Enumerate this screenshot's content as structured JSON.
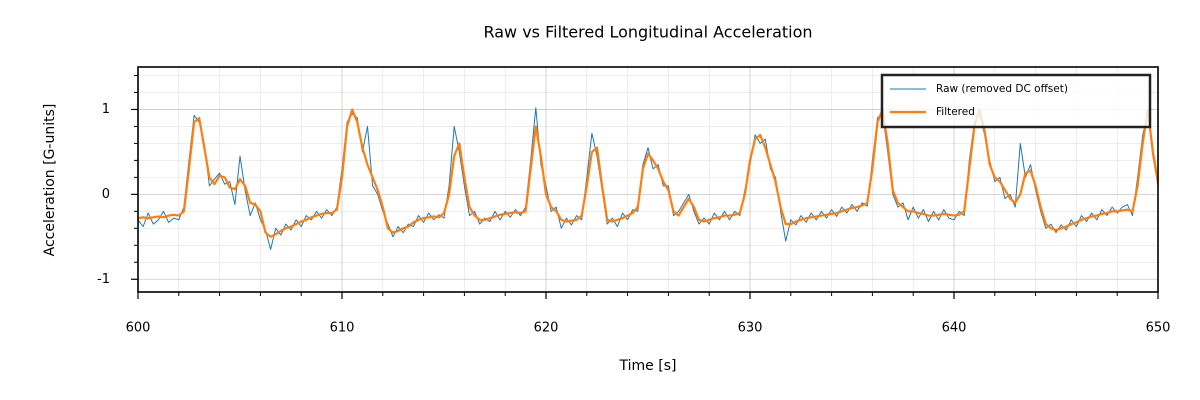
{
  "chart_data": {
    "type": "line",
    "title": "Raw vs Filtered Longitudinal Acceleration",
    "xlabel": "Time [s]",
    "ylabel": "Acceleration [G-units]",
    "xlim": [
      600,
      650
    ],
    "ylim": [
      -1.15,
      1.5
    ],
    "xticks": [
      600,
      610,
      620,
      630,
      640,
      650
    ],
    "yticks": [
      -1,
      0,
      1
    ],
    "xminorticks": [
      602,
      604,
      606,
      608,
      612,
      614,
      616,
      618,
      622,
      624,
      626,
      628,
      632,
      634,
      636,
      638,
      642,
      644,
      646,
      648
    ],
    "yminorticks": [
      -0.8,
      -0.6,
      -0.4,
      -0.2,
      0.2,
      0.4,
      0.6,
      0.8,
      1.2,
      1.4
    ],
    "grid": true,
    "legend": "upper right",
    "x": [
      600,
      600.25,
      600.5,
      600.75,
      601,
      601.25,
      601.5,
      601.75,
      602,
      602.25,
      602.5,
      602.75,
      603,
      603.25,
      603.5,
      603.75,
      604,
      604.25,
      604.5,
      604.75,
      605,
      605.25,
      605.5,
      605.75,
      606,
      606.25,
      606.5,
      606.75,
      607,
      607.25,
      607.5,
      607.75,
      608,
      608.25,
      608.5,
      608.75,
      609,
      609.25,
      609.5,
      609.75,
      610,
      610.25,
      610.5,
      610.75,
      611,
      611.25,
      611.5,
      611.75,
      612,
      612.25,
      612.5,
      612.75,
      613,
      613.25,
      613.5,
      613.75,
      614,
      614.25,
      614.5,
      614.75,
      615,
      615.25,
      615.5,
      615.75,
      616,
      616.25,
      616.5,
      616.75,
      617,
      617.25,
      617.5,
      617.75,
      618,
      618.25,
      618.5,
      618.75,
      619,
      619.25,
      619.5,
      619.75,
      620,
      620.25,
      620.5,
      620.75,
      621,
      621.25,
      621.5,
      621.75,
      622,
      622.25,
      622.5,
      622.75,
      623,
      623.25,
      623.5,
      623.75,
      624,
      624.25,
      624.5,
      624.75,
      625,
      625.25,
      625.5,
      625.75,
      626,
      626.25,
      626.5,
      626.75,
      627,
      627.25,
      627.5,
      627.75,
      628,
      628.25,
      628.5,
      628.75,
      629,
      629.25,
      629.5,
      629.75,
      630,
      630.25,
      630.5,
      630.75,
      631,
      631.25,
      631.5,
      631.75,
      632,
      632.25,
      632.5,
      632.75,
      633,
      633.25,
      633.5,
      633.75,
      634,
      634.25,
      634.5,
      634.75,
      635,
      635.25,
      635.5,
      635.75,
      636,
      636.25,
      636.5,
      636.75,
      637,
      637.25,
      637.5,
      637.75,
      638,
      638.25,
      638.5,
      638.75,
      639,
      639.25,
      639.5,
      639.75,
      640,
      640.25,
      640.5,
      640.75,
      641,
      641.25,
      641.5,
      641.75,
      642,
      642.25,
      642.5,
      642.75,
      643,
      643.25,
      643.5,
      643.75,
      644,
      644.25,
      644.5,
      644.75,
      645,
      645.25,
      645.5,
      645.75,
      646,
      646.25,
      646.5,
      646.75,
      647,
      647.25,
      647.5,
      647.75,
      648,
      648.25,
      648.5,
      648.75,
      649,
      649.25,
      649.5,
      649.75,
      650
    ],
    "series": [
      {
        "name": "Raw (removed DC offset)",
        "color": "#1f77b4",
        "width": 1,
        "values": [
          -0.3,
          -0.38,
          -0.22,
          -0.35,
          -0.3,
          -0.2,
          -0.33,
          -0.28,
          -0.3,
          -0.15,
          0.4,
          0.93,
          0.85,
          0.6,
          0.1,
          0.18,
          0.25,
          0.12,
          0.15,
          -0.12,
          0.45,
          0.05,
          -0.25,
          -0.1,
          -0.3,
          -0.42,
          -0.65,
          -0.4,
          -0.48,
          -0.35,
          -0.42,
          -0.3,
          -0.38,
          -0.25,
          -0.3,
          -0.2,
          -0.28,
          -0.18,
          -0.25,
          -0.15,
          0.3,
          0.85,
          0.95,
          0.9,
          0.5,
          0.8,
          0.1,
          0.0,
          -0.2,
          -0.35,
          -0.5,
          -0.38,
          -0.45,
          -0.35,
          -0.38,
          -0.25,
          -0.33,
          -0.22,
          -0.3,
          -0.24,
          -0.28,
          0.1,
          0.8,
          0.5,
          0.1,
          -0.25,
          -0.2,
          -0.35,
          -0.28,
          -0.32,
          -0.2,
          -0.3,
          -0.2,
          -0.27,
          -0.18,
          -0.25,
          -0.15,
          0.4,
          1.02,
          0.35,
          0.1,
          -0.2,
          -0.15,
          -0.4,
          -0.28,
          -0.36,
          -0.25,
          -0.3,
          0.2,
          0.72,
          0.45,
          0.05,
          -0.35,
          -0.28,
          -0.38,
          -0.22,
          -0.3,
          -0.18,
          -0.2,
          0.35,
          0.55,
          0.3,
          0.35,
          0.1,
          0.1,
          -0.25,
          -0.2,
          -0.1,
          0.0,
          -0.2,
          -0.35,
          -0.28,
          -0.35,
          -0.22,
          -0.3,
          -0.2,
          -0.3,
          -0.2,
          -0.25,
          0.05,
          0.35,
          0.7,
          0.6,
          0.65,
          0.3,
          0.2,
          -0.2,
          -0.55,
          -0.3,
          -0.36,
          -0.25,
          -0.33,
          -0.22,
          -0.3,
          -0.2,
          -0.28,
          -0.18,
          -0.26,
          -0.15,
          -0.22,
          -0.12,
          -0.2,
          -0.1,
          -0.14,
          0.4,
          0.9,
          0.95,
          0.5,
          0.0,
          -0.15,
          -0.1,
          -0.3,
          -0.15,
          -0.28,
          -0.18,
          -0.32,
          -0.2,
          -0.3,
          -0.18,
          -0.28,
          -0.3,
          -0.2,
          -0.25,
          0.4,
          0.85,
          0.95,
          0.7,
          0.4,
          0.15,
          0.2,
          -0.05,
          0.0,
          -0.15,
          0.6,
          0.2,
          0.35,
          0.05,
          -0.2,
          -0.4,
          -0.35,
          -0.45,
          -0.36,
          -0.42,
          -0.3,
          -0.38,
          -0.25,
          -0.32,
          -0.22,
          -0.3,
          -0.18,
          -0.25,
          -0.15,
          -0.22,
          -0.15,
          -0.12,
          -0.25,
          0.2,
          0.7,
          0.95,
          0.45,
          0.1
        ]
      },
      {
        "name": "Filtered",
        "color": "#ff7f0e",
        "width": 2.2,
        "values": [
          -0.28,
          -0.27,
          -0.28,
          -0.27,
          -0.26,
          -0.27,
          -0.25,
          -0.24,
          -0.25,
          -0.2,
          0.3,
          0.85,
          0.9,
          0.55,
          0.2,
          0.12,
          0.22,
          0.2,
          0.08,
          0.06,
          0.18,
          0.1,
          -0.1,
          -0.12,
          -0.2,
          -0.45,
          -0.5,
          -0.47,
          -0.43,
          -0.4,
          -0.38,
          -0.35,
          -0.32,
          -0.3,
          -0.27,
          -0.25,
          -0.23,
          -0.22,
          -0.22,
          -0.18,
          0.2,
          0.8,
          1.0,
          0.85,
          0.55,
          0.35,
          0.2,
          0.05,
          -0.15,
          -0.4,
          -0.45,
          -0.43,
          -0.4,
          -0.38,
          -0.33,
          -0.3,
          -0.28,
          -0.27,
          -0.26,
          -0.27,
          -0.22,
          0.0,
          0.45,
          0.6,
          0.2,
          -0.15,
          -0.25,
          -0.3,
          -0.3,
          -0.28,
          -0.26,
          -0.24,
          -0.23,
          -0.22,
          -0.21,
          -0.22,
          -0.2,
          0.3,
          0.8,
          0.45,
          0.0,
          -0.15,
          -0.2,
          -0.3,
          -0.32,
          -0.31,
          -0.3,
          -0.25,
          0.1,
          0.5,
          0.55,
          0.1,
          -0.3,
          -0.32,
          -0.3,
          -0.28,
          -0.25,
          -0.22,
          -0.15,
          0.3,
          0.48,
          0.4,
          0.3,
          0.15,
          0.05,
          -0.2,
          -0.25,
          -0.15,
          -0.05,
          -0.15,
          -0.3,
          -0.32,
          -0.3,
          -0.28,
          -0.27,
          -0.25,
          -0.25,
          -0.24,
          -0.22,
          0.0,
          0.4,
          0.65,
          0.7,
          0.55,
          0.35,
          0.15,
          -0.15,
          -0.35,
          -0.35,
          -0.32,
          -0.3,
          -0.28,
          -0.27,
          -0.26,
          -0.25,
          -0.24,
          -0.23,
          -0.22,
          -0.2,
          -0.18,
          -0.16,
          -0.15,
          -0.13,
          -0.1,
          0.3,
          0.85,
          1.0,
          0.6,
          0.05,
          -0.1,
          -0.15,
          -0.2,
          -0.2,
          -0.22,
          -0.23,
          -0.25,
          -0.25,
          -0.24,
          -0.23,
          -0.24,
          -0.25,
          -0.24,
          -0.2,
          0.3,
          0.8,
          1.0,
          0.75,
          0.35,
          0.2,
          0.15,
          0.05,
          -0.05,
          -0.1,
          0.0,
          0.25,
          0.28,
          0.1,
          -0.15,
          -0.35,
          -0.4,
          -0.42,
          -0.4,
          -0.38,
          -0.35,
          -0.33,
          -0.3,
          -0.28,
          -0.26,
          -0.25,
          -0.23,
          -0.22,
          -0.2,
          -0.2,
          -0.19,
          -0.18,
          -0.2,
          0.1,
          0.6,
          1.0,
          0.5,
          0.15
        ]
      }
    ]
  }
}
